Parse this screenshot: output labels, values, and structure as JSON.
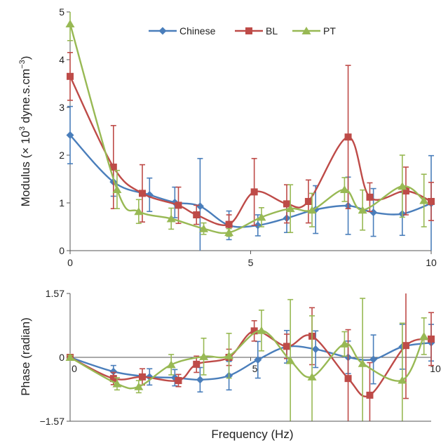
{
  "colors": {
    "Chinese": "#4a7ebb",
    "BL": "#be4b48",
    "PT": "#98b954",
    "axis": "#555555"
  },
  "chart_data": [
    {
      "type": "line",
      "panel": "modulus",
      "ylabel_pre": "Modulus (",
      "ylabel_times": "×",
      "ylabel_base": " 10",
      "ylabel_exp": "3",
      "ylabel_unit": " dyne.s.cm",
      "ylabel_exp2": "−3",
      "ylabel_post": ")",
      "xlim": [
        0,
        10
      ],
      "ylim": [
        0,
        5
      ],
      "xticks": [
        "0",
        "5",
        "10"
      ],
      "yticks": [
        "0",
        "1",
        "2",
        "3",
        "4",
        "5"
      ],
      "legend_position": "top-center",
      "series": [
        {
          "name": "Chinese",
          "marker": "diamond",
          "x": [
            0,
            1.2,
            2.2,
            2.9,
            3.6,
            4.4,
            5.2,
            6.0,
            6.8,
            7.7,
            8.4,
            9.2,
            10.0
          ],
          "y": [
            2.42,
            1.44,
            1.17,
            1.01,
            0.93,
            0.53,
            0.53,
            0.68,
            0.86,
            0.94,
            0.8,
            0.77,
            0.99
          ],
          "err": [
            0.6,
            0.3,
            0.35,
            0.32,
            1.0,
            0.3,
            0.22,
            0.3,
            0.5,
            0.6,
            0.5,
            0.45,
            1.0
          ]
        },
        {
          "name": "BL",
          "marker": "square",
          "x": [
            0,
            1.2,
            2.0,
            3.0,
            3.5,
            4.4,
            5.1,
            6.0,
            6.6,
            7.7,
            8.3,
            9.3,
            10.0
          ],
          "y": [
            3.65,
            1.75,
            1.2,
            0.95,
            0.75,
            0.55,
            1.23,
            0.98,
            1.03,
            2.38,
            1.12,
            1.25,
            1.03
          ],
          "err": [
            0.5,
            0.87,
            0.6,
            0.38,
            0.2,
            0.2,
            0.7,
            0.4,
            0.45,
            1.5,
            0.3,
            0.5,
            0.4
          ]
        },
        {
          "name": "PT",
          "marker": "triangle",
          "x": [
            0,
            1.3,
            1.9,
            2.8,
            3.7,
            4.4,
            5.3,
            6.1,
            6.7,
            7.6,
            8.1,
            9.2,
            9.8
          ],
          "y": [
            4.75,
            1.28,
            0.82,
            0.67,
            0.46,
            0.38,
            0.7,
            0.88,
            0.85,
            1.28,
            0.85,
            1.35,
            1.05
          ],
          "err": [
            0.35,
            0.4,
            0.25,
            0.22,
            0.12,
            0.08,
            0.2,
            0.5,
            0.35,
            0.25,
            0.42,
            0.65,
            0.55
          ]
        }
      ]
    },
    {
      "type": "line",
      "panel": "phase",
      "xlabel": "Frequency (Hz)",
      "ylabel": "Phase (radian)",
      "xlim": [
        0,
        10
      ],
      "ylim": [
        -1.57,
        1.57
      ],
      "xticks": [
        "0",
        "5",
        "10"
      ],
      "yticks": [
        "1.57",
        "0",
        "−1.57"
      ],
      "series": [
        {
          "name": "Chinese",
          "marker": "diamond",
          "x": [
            0,
            1.2,
            2.2,
            2.9,
            3.6,
            4.4,
            5.2,
            6.0,
            6.8,
            7.7,
            8.4,
            9.2,
            10.0
          ],
          "y": [
            0.0,
            -0.35,
            -0.48,
            -0.5,
            -0.55,
            -0.45,
            -0.06,
            0.26,
            0.2,
            0.0,
            -0.05,
            0.26,
            0.36
          ],
          "err": [
            0.05,
            0.15,
            0.2,
            0.2,
            0.3,
            0.35,
            0.45,
            0.4,
            0.45,
            0.4,
            0.6,
            0.55,
            0.45
          ]
        },
        {
          "name": "BL",
          "marker": "square",
          "x": [
            0,
            1.2,
            2.0,
            3.0,
            3.5,
            4.4,
            5.1,
            6.0,
            6.7,
            7.7,
            8.3,
            9.3,
            10.0
          ],
          "y": [
            0.0,
            -0.52,
            -0.48,
            -0.57,
            -0.17,
            0.0,
            0.65,
            0.27,
            0.52,
            -0.52,
            -0.93,
            0.29,
            0.45
          ],
          "err": [
            0.05,
            0.15,
            0.2,
            0.15,
            0.2,
            0.2,
            0.25,
            0.3,
            0.7,
            1.2,
            0.8,
            1.3,
            0.65
          ]
        },
        {
          "name": "PT",
          "marker": "triangle",
          "x": [
            0,
            1.3,
            1.9,
            2.8,
            3.7,
            4.4,
            5.3,
            6.1,
            6.7,
            7.6,
            8.1,
            9.2,
            9.8
          ],
          "y": [
            0.0,
            -0.65,
            -0.72,
            -0.18,
            0.02,
            0.04,
            0.66,
            -0.08,
            -0.48,
            0.33,
            -0.15,
            -0.56,
            0.52
          ],
          "err": [
            0.05,
            0.15,
            0.15,
            0.25,
            0.45,
            0.55,
            0.5,
            1.5,
            1.5,
            0.3,
            1.6,
            1.4,
            0.45
          ]
        }
      ]
    }
  ]
}
